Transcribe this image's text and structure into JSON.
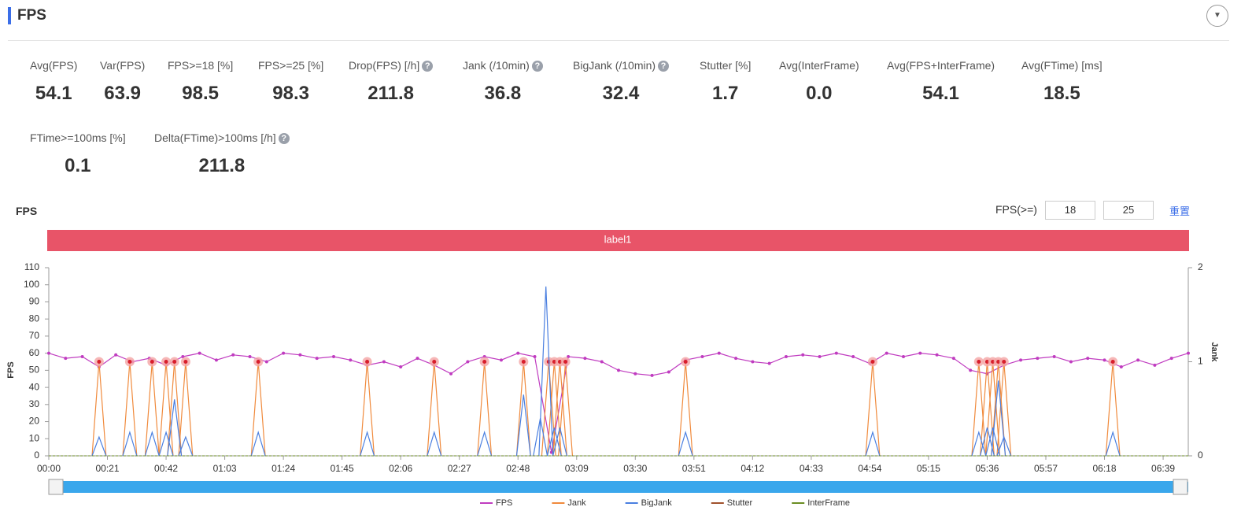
{
  "header": {
    "title": "FPS"
  },
  "metrics": [
    {
      "label": "Avg(FPS)",
      "value": "54.1",
      "help": false
    },
    {
      "label": "Var(FPS)",
      "value": "63.9",
      "help": false
    },
    {
      "label": "FPS>=18 [%]",
      "value": "98.5",
      "help": false
    },
    {
      "label": "FPS>=25 [%]",
      "value": "98.3",
      "help": false
    },
    {
      "label": "Drop(FPS) [/h]",
      "value": "211.8",
      "help": true
    },
    {
      "label": "Jank (/10min)",
      "value": "36.8",
      "help": true
    },
    {
      "label": "BigJank (/10min)",
      "value": "32.4",
      "help": true
    },
    {
      "label": "Stutter [%]",
      "value": "1.7",
      "help": false
    },
    {
      "label": "Avg(InterFrame)",
      "value": "0.0",
      "help": false
    },
    {
      "label": "Avg(FPS+InterFrame)",
      "value": "54.1",
      "help": false
    },
    {
      "label": "Avg(FTime) [ms]",
      "value": "18.5",
      "help": false
    },
    {
      "label": "FTime>=100ms [%]",
      "value": "0.1",
      "help": false
    },
    {
      "label": "Delta(FTime)>100ms [/h]",
      "value": "211.8",
      "help": true
    }
  ],
  "controls": {
    "title": "FPS",
    "threshold_label": "FPS(>=)",
    "threshold_low": "18",
    "threshold_high": "25",
    "reset": "重置",
    "band_label": "label1"
  },
  "chart_data": {
    "type": "line",
    "ylabel": "FPS",
    "y2label": "Jank",
    "xlim": [
      0,
      408
    ],
    "xticks": [
      {
        "value": 0,
        "label": "00:00"
      },
      {
        "value": 21,
        "label": "00:21"
      },
      {
        "value": 42,
        "label": "00:42"
      },
      {
        "value": 63,
        "label": "01:03"
      },
      {
        "value": 84,
        "label": "01:24"
      },
      {
        "value": 105,
        "label": "01:45"
      },
      {
        "value": 126,
        "label": "02:06"
      },
      {
        "value": 147,
        "label": "02:27"
      },
      {
        "value": 168,
        "label": "02:48"
      },
      {
        "value": 189,
        "label": "03:09"
      },
      {
        "value": 210,
        "label": "03:30"
      },
      {
        "value": 231,
        "label": "03:51"
      },
      {
        "value": 252,
        "label": "04:12"
      },
      {
        "value": 273,
        "label": "04:33"
      },
      {
        "value": 294,
        "label": "04:54"
      },
      {
        "value": 315,
        "label": "05:15"
      },
      {
        "value": 336,
        "label": "05:36"
      },
      {
        "value": 357,
        "label": "05:57"
      },
      {
        "value": 378,
        "label": "06:18"
      },
      {
        "value": 399,
        "label": "06:39"
      }
    ],
    "ylim": [
      0,
      110
    ],
    "yticks": [
      0,
      10,
      20,
      30,
      40,
      50,
      60,
      70,
      80,
      90,
      100,
      110
    ],
    "y2lim": [
      0,
      2
    ],
    "y2ticks": [
      0,
      1,
      2
    ],
    "series": [
      {
        "name": "FPS",
        "color": "#c03cc0",
        "style": "line",
        "x": [
          0,
          6,
          12,
          18,
          24,
          30,
          36,
          42,
          48,
          54,
          60,
          66,
          72,
          78,
          84,
          90,
          96,
          102,
          108,
          114,
          120,
          126,
          132,
          138,
          144,
          150,
          156,
          162,
          168,
          174,
          180,
          186,
          192,
          198,
          204,
          210,
          216,
          222,
          228,
          234,
          240,
          246,
          252,
          258,
          264,
          270,
          276,
          282,
          288,
          294,
          300,
          306,
          312,
          318,
          324,
          330,
          336,
          342,
          348,
          354,
          360,
          366,
          372,
          378,
          384,
          390,
          396,
          402,
          408
        ],
        "values": [
          60,
          57,
          58,
          52,
          59,
          55,
          57,
          53,
          58,
          60,
          56,
          59,
          58,
          55,
          60,
          59,
          57,
          58,
          56,
          53,
          55,
          52,
          57,
          53,
          48,
          55,
          58,
          56,
          60,
          58,
          2,
          58,
          57,
          55,
          50,
          48,
          47,
          49,
          56,
          58,
          60,
          57,
          55,
          54,
          58,
          59,
          58,
          60,
          58,
          54,
          60,
          58,
          60,
          59,
          57,
          50,
          48,
          53,
          56,
          57,
          58,
          55,
          57,
          56,
          52,
          56,
          53,
          57,
          60
        ]
      },
      {
        "name": "Jank",
        "color": "#f08a3c",
        "style": "spike",
        "axis": "y2",
        "x": [
          18,
          29,
          37,
          42,
          45,
          49,
          75,
          114,
          138,
          156,
          170,
          179,
          181,
          183,
          185,
          228,
          295,
          333,
          336,
          338,
          340,
          342,
          381
        ],
        "values": [
          1,
          1,
          1,
          1,
          1,
          1,
          1,
          1,
          1,
          1,
          1,
          1,
          1,
          1,
          1,
          1,
          1,
          1,
          1,
          1,
          1,
          1,
          1
        ]
      },
      {
        "name": "BigJank",
        "color": "#4a7fe0",
        "style": "spike",
        "axis": "y2",
        "x": [
          18,
          29,
          37,
          42,
          45,
          49,
          75,
          114,
          138,
          156,
          170,
          176,
          178,
          181,
          183,
          228,
          295,
          333,
          336,
          338,
          340,
          342,
          381
        ],
        "values": [
          0.2,
          0.25,
          0.25,
          0.25,
          0.6,
          0.2,
          0.25,
          0.25,
          0.25,
          0.25,
          0.65,
          0.4,
          1.8,
          0.3,
          0.3,
          0.25,
          0.25,
          0.25,
          0.3,
          0.3,
          0.8,
          0.2,
          0.25
        ]
      },
      {
        "name": "Stutter",
        "color": "#a0522d",
        "style": "dash",
        "axis": "y2",
        "x": [
          0,
          408
        ],
        "values": [
          0,
          0
        ]
      },
      {
        "name": "InterFrame",
        "color": "#6b8e23",
        "style": "dash",
        "x": [
          0,
          408
        ],
        "values": [
          0,
          0
        ]
      }
    ]
  }
}
